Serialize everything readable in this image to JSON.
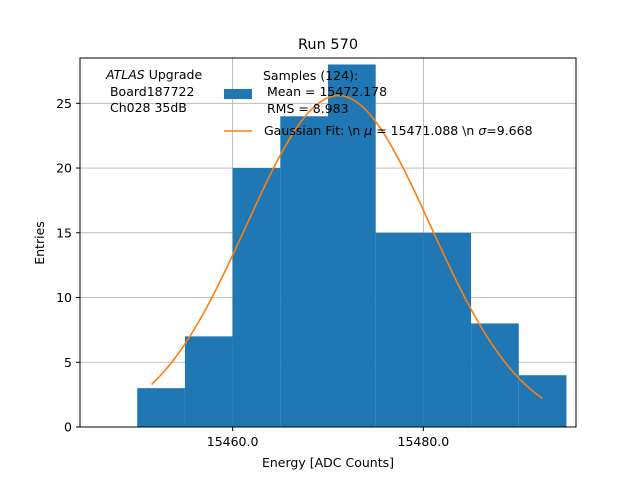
{
  "colors": {
    "bar": "#1f77b4",
    "fit": "#ff7f0e",
    "grid": "#b0b0b0",
    "axis": "#000000"
  },
  "chart_data": {
    "type": "bar",
    "title": "Run 570",
    "xlabel": "Energy [ADC Counts]",
    "ylabel": "Entries",
    "xlim": [
      15444.0,
      15496.0
    ],
    "ylim": [
      0,
      28.5
    ],
    "xticks": [
      15460.0,
      15480.0
    ],
    "xtick_labels": [
      "15460.0",
      "15480.0"
    ],
    "yticks": [
      0,
      5,
      10,
      15,
      20,
      25
    ],
    "grid": true,
    "bins": [
      {
        "left": 15450,
        "right": 15455,
        "count": 3
      },
      {
        "left": 15455,
        "right": 15460,
        "count": 7
      },
      {
        "left": 15460,
        "right": 15465,
        "count": 20
      },
      {
        "left": 15465,
        "right": 15470,
        "count": 24
      },
      {
        "left": 15470,
        "right": 15475,
        "count": 28
      },
      {
        "left": 15475,
        "right": 15480,
        "count": 15
      },
      {
        "left": 15480,
        "right": 15485,
        "count": 15
      },
      {
        "left": 15485,
        "right": 15490,
        "count": 8
      },
      {
        "left": 15490,
        "right": 15495,
        "count": 4
      }
    ],
    "fit": {
      "mu": 15471.088,
      "sigma": 9.668,
      "amplitude": 25.6,
      "x_range": [
        15451.5,
        15492.5
      ]
    },
    "annotation": {
      "italic": "ATLAS",
      "rest": " Upgrade",
      "line2": " Board187722",
      "line3": " Ch028 35dB"
    },
    "legend": {
      "placement": "top-right",
      "samples_line1": "Samples (124):",
      "samples_line2": " Mean = 15472.178",
      "samples_line3": " RMS = 8.983",
      "fit_prefix": "Gaussian Fit: \\n ",
      "fit_mu_symbol": "μ",
      "fit_middle": " = 15471.088 \\n ",
      "fit_sigma_symbol": "σ",
      "fit_suffix": "=9.668"
    }
  }
}
